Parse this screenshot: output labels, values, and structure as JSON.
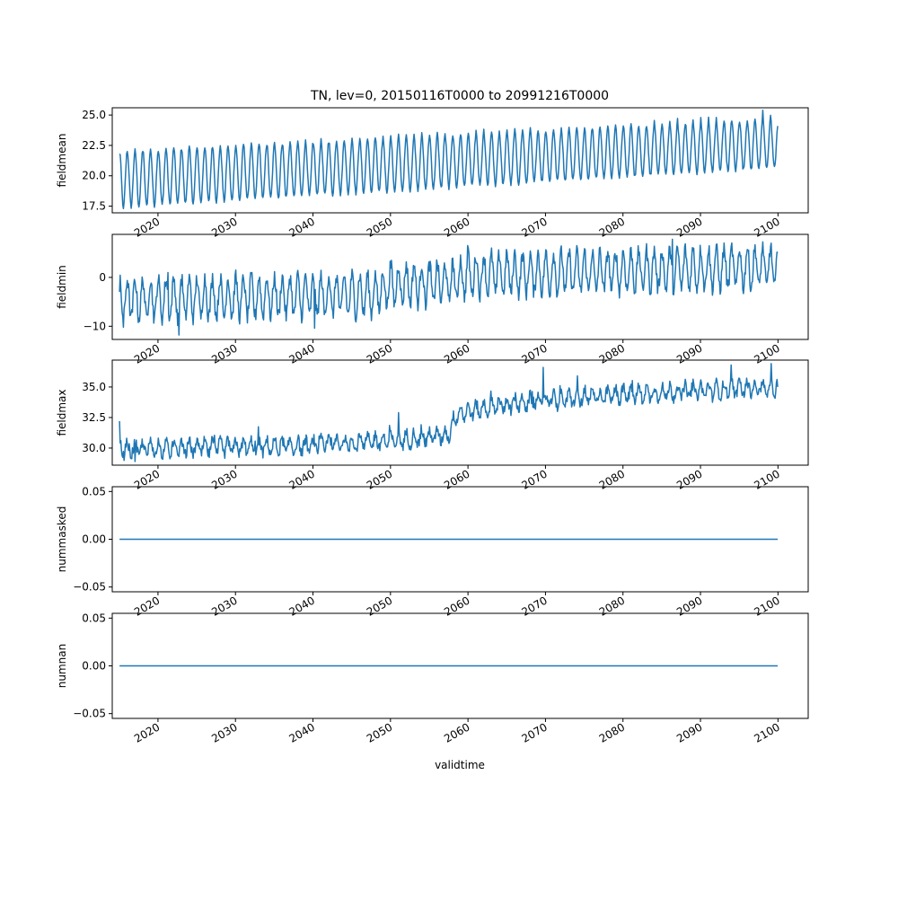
{
  "figure": {
    "title": "TN, lev=0, 20150116T0000 to 20991216T0000",
    "xlabel": "validtime"
  },
  "colors": {
    "line": "#1f77b4",
    "axes": "#000000",
    "background": "#ffffff"
  },
  "chart_data": [
    {
      "type": "line",
      "ylabel": "fieldmean",
      "xlim": [
        2014.1,
        2103.9
      ],
      "ylim": [
        16.95,
        25.6
      ],
      "yticks": [
        17.5,
        20.0,
        22.5,
        25.0
      ],
      "ytick_labels": [
        "17.5",
        "20.0",
        "22.5",
        "25.0"
      ],
      "xticks": [
        2020,
        2030,
        2040,
        2050,
        2060,
        2070,
        2080,
        2090,
        2100
      ],
      "xtick_labels": [
        "2020",
        "2030",
        "2040",
        "2050",
        "2060",
        "2070",
        "2080",
        "2090",
        "2100"
      ],
      "x_range": [
        2015.04,
        2099.96
      ],
      "series": [
        {
          "x_start": 2015.04,
          "x_end": 2099.96,
          "points": 1020,
          "trend": {
            "base_start": 19.7,
            "base_end": 22.65,
            "amp_start": 2.3,
            "amp_end": 2.0
          },
          "peaks": [
            [
              2015.04,
              21.8
            ],
            [
              2015.54,
              17.3
            ],
            [
              2016.04,
              22.0
            ],
            [
              2020.04,
              22.0
            ],
            [
              2025.04,
              22.3
            ],
            [
              2030.04,
              22.5
            ],
            [
              2040.04,
              22.6
            ],
            [
              2045.04,
              23.1
            ],
            [
              2050.04,
              23.3
            ],
            [
              2060.04,
              23.5
            ],
            [
              2070.04,
              23.6
            ],
            [
              2080.04,
              24.1
            ],
            [
              2090.04,
              24.8
            ],
            [
              2098.04,
              25.4
            ],
            [
              2099.96,
              24.1
            ]
          ]
        }
      ]
    },
    {
      "type": "line",
      "ylabel": "fieldmin",
      "xlim": [
        2014.1,
        2103.9
      ],
      "ylim": [
        -12.7,
        8.8
      ],
      "yticks": [
        -10,
        0
      ],
      "ytick_labels": [
        "−10",
        "0"
      ],
      "xticks": [
        2020,
        2030,
        2040,
        2050,
        2060,
        2070,
        2080,
        2090,
        2100
      ],
      "xtick_labels": [
        "2020",
        "2030",
        "2040",
        "2050",
        "2060",
        "2070",
        "2080",
        "2090",
        "2100"
      ],
      "x_range": [
        2015.04,
        2099.96
      ],
      "series": [
        {
          "x_start": 2015.04,
          "x_end": 2099.96,
          "points": 1020,
          "trend": [
            [
              2015,
              -4.5
            ],
            [
              2048,
              -3.5
            ],
            [
              2050,
              -1.5
            ],
            [
              2058,
              -1.0
            ],
            [
              2060,
              0.5
            ],
            [
              2100,
              2.2
            ]
          ],
          "amplitude": 4.0,
          "extremes": [
            [
              2015.04,
              -3.0
            ],
            [
              2015.5,
              -10.2
            ],
            [
              2021.3,
              1.0
            ],
            [
              2022.7,
              -11.8
            ],
            [
              2040.2,
              -10.4
            ],
            [
              2060.0,
              6.5
            ],
            [
              2086.4,
              7.8
            ],
            [
              2099.96,
              5.0
            ]
          ]
        }
      ]
    },
    {
      "type": "line",
      "ylabel": "fieldmax",
      "xlim": [
        2014.1,
        2103.9
      ],
      "ylim": [
        28.6,
        37.2
      ],
      "yticks": [
        30.0,
        32.5,
        35.0
      ],
      "ytick_labels": [
        "30.0",
        "32.5",
        "35.0"
      ],
      "xticks": [
        2020,
        2030,
        2040,
        2050,
        2060,
        2070,
        2080,
        2090,
        2100
      ],
      "xtick_labels": [
        "2020",
        "2030",
        "2040",
        "2050",
        "2060",
        "2070",
        "2080",
        "2090",
        "2100"
      ],
      "x_range": [
        2015.04,
        2099.96
      ],
      "series": [
        {
          "x_start": 2015.04,
          "x_end": 2099.96,
          "points": 1020,
          "trend": [
            [
              2015,
              29.9
            ],
            [
              2040,
              30.2
            ],
            [
              2050,
              30.6
            ],
            [
              2057.5,
              31.1
            ],
            [
              2058.5,
              32.8
            ],
            [
              2065,
              33.6
            ],
            [
              2080,
              34.4
            ],
            [
              2100,
              35.0
            ]
          ],
          "amplitude": 0.55,
          "extremes": [
            [
              2015.04,
              32.2
            ],
            [
              2015.3,
              29.8
            ],
            [
              2017.0,
              28.9
            ],
            [
              2051.0,
              32.9
            ],
            [
              2069.7,
              36.6
            ],
            [
              2094.0,
              36.8
            ],
            [
              2099.96,
              35.0
            ]
          ]
        }
      ]
    },
    {
      "type": "line",
      "ylabel": "nummasked",
      "xlim": [
        2014.1,
        2103.9
      ],
      "ylim": [
        -0.055,
        0.055
      ],
      "yticks": [
        -0.05,
        0.0,
        0.05
      ],
      "ytick_labels": [
        "−0.05",
        "0.00",
        "0.05"
      ],
      "xticks": [
        2020,
        2030,
        2040,
        2050,
        2060,
        2070,
        2080,
        2090,
        2100
      ],
      "xtick_labels": [
        "2020",
        "2030",
        "2040",
        "2050",
        "2060",
        "2070",
        "2080",
        "2090",
        "2100"
      ],
      "x_range": [
        2015.04,
        2099.96
      ],
      "series": [
        {
          "x": [
            2015.04,
            2099.96
          ],
          "y": [
            0,
            0
          ]
        }
      ]
    },
    {
      "type": "line",
      "ylabel": "numnan",
      "xlim": [
        2014.1,
        2103.9
      ],
      "ylim": [
        -0.055,
        0.055
      ],
      "yticks": [
        -0.05,
        0.0,
        0.05
      ],
      "ytick_labels": [
        "−0.05",
        "0.00",
        "0.05"
      ],
      "xticks": [
        2020,
        2030,
        2040,
        2050,
        2060,
        2070,
        2080,
        2090,
        2100
      ],
      "xtick_labels": [
        "2020",
        "2030",
        "2040",
        "2050",
        "2060",
        "2070",
        "2080",
        "2090",
        "2100"
      ],
      "x_range": [
        2015.04,
        2099.96
      ],
      "series": [
        {
          "x": [
            2015.04,
            2099.96
          ],
          "y": [
            0,
            0
          ]
        }
      ]
    }
  ]
}
